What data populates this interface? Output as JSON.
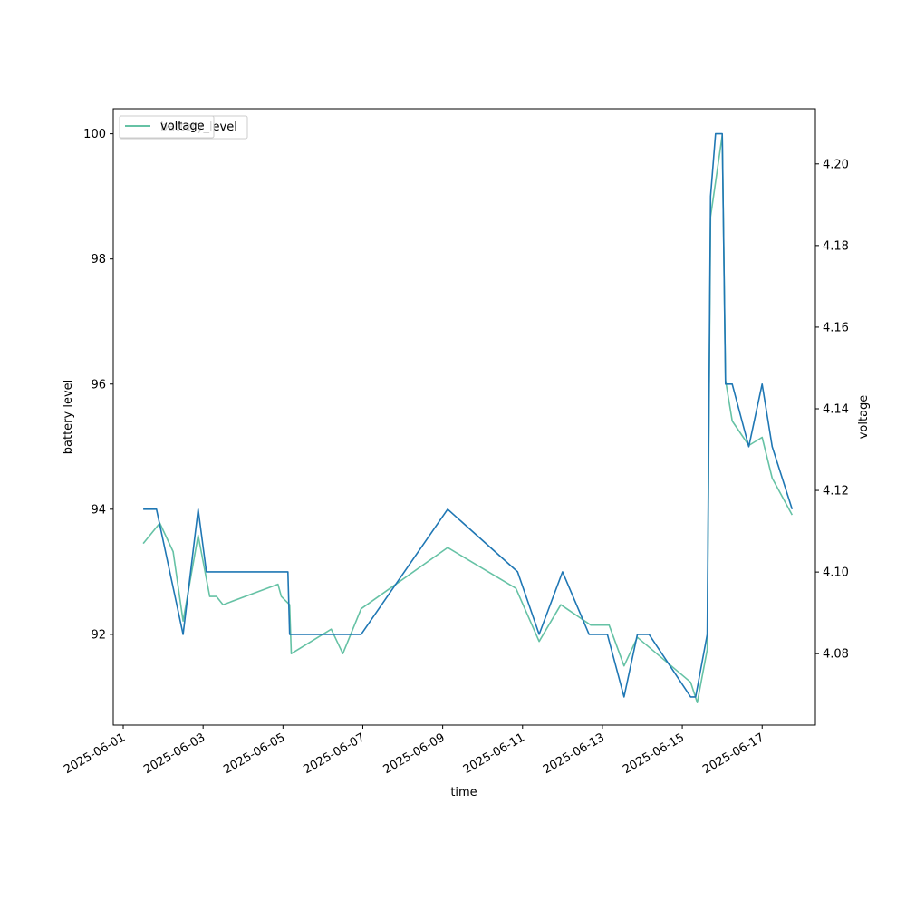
{
  "chart_data": {
    "type": "line",
    "xlabel": "time",
    "ylabel": "battery level",
    "y2label": "voltage",
    "xlim": [
      "2025-05-31T18:00",
      "2025-06-18T08:00"
    ],
    "ylim": [
      90.55,
      100.4
    ],
    "y2lim": [
      4.0625,
      4.2135
    ],
    "x_ticks": [
      "2025-06-01",
      "2025-06-03",
      "2025-06-05",
      "2025-06-07",
      "2025-06-09",
      "2025-06-11",
      "2025-06-13",
      "2025-06-15",
      "2025-06-17"
    ],
    "y_ticks": [
      92,
      94,
      96,
      98,
      100
    ],
    "y2_ticks": [
      4.08,
      4.1,
      4.12,
      4.14,
      4.16,
      4.18,
      4.2
    ],
    "legend": {
      "placement": "upper-left",
      "entries": [
        "battery_level",
        "voltage"
      ]
    },
    "grid": false,
    "series": [
      {
        "name": "battery_level",
        "axis": "left",
        "color": "#1f77b4",
        "points": [
          [
            "2025-06-01T12:00",
            94
          ],
          [
            "2025-06-01T20:00",
            94
          ],
          [
            "2025-06-02T12:00",
            92
          ],
          [
            "2025-06-02T21:00",
            94
          ],
          [
            "2025-06-03T02:00",
            93
          ],
          [
            "2025-06-05T03:00",
            93
          ],
          [
            "2025-06-05T04:00",
            92
          ],
          [
            "2025-06-06T23:00",
            92
          ],
          [
            "2025-06-09T03:00",
            94
          ],
          [
            "2025-06-10T21:00",
            93
          ],
          [
            "2025-06-11T10:00",
            92
          ],
          [
            "2025-06-12T00:00",
            93
          ],
          [
            "2025-06-12T16:00",
            92
          ],
          [
            "2025-06-13T03:00",
            92
          ],
          [
            "2025-06-13T13:00",
            91
          ],
          [
            "2025-06-13T21:00",
            92
          ],
          [
            "2025-06-14T04:00",
            92
          ],
          [
            "2025-06-15T05:00",
            91
          ],
          [
            "2025-06-15T08:00",
            91
          ],
          [
            "2025-06-15T15:00",
            92
          ],
          [
            "2025-06-15T17:00",
            99
          ],
          [
            "2025-06-15T20:00",
            100
          ],
          [
            "2025-06-16T00:00",
            100
          ],
          [
            "2025-06-16T02:00",
            96
          ],
          [
            "2025-06-16T06:00",
            96
          ],
          [
            "2025-06-16T16:00",
            95
          ],
          [
            "2025-06-17T00:00",
            96
          ],
          [
            "2025-06-17T06:00",
            95
          ],
          [
            "2025-06-17T18:00",
            94
          ]
        ]
      },
      {
        "name": "voltage",
        "axis": "right",
        "color": "#66c2a5",
        "points": [
          [
            "2025-06-01T12:00",
            4.107
          ],
          [
            "2025-06-01T22:00",
            4.112
          ],
          [
            "2025-06-02T06:00",
            4.105
          ],
          [
            "2025-06-02T12:00",
            4.088
          ],
          [
            "2025-06-02T21:00",
            4.109
          ],
          [
            "2025-06-03T04:00",
            4.094
          ],
          [
            "2025-06-03T08:00",
            4.094
          ],
          [
            "2025-06-03T12:00",
            4.092
          ],
          [
            "2025-06-04T21:00",
            4.097
          ],
          [
            "2025-06-04T23:00",
            4.094
          ],
          [
            "2025-06-05T04:00",
            4.092
          ],
          [
            "2025-06-05T05:00",
            4.08
          ],
          [
            "2025-06-06T05:00",
            4.086
          ],
          [
            "2025-06-06T12:00",
            4.08
          ],
          [
            "2025-06-06T23:00",
            4.091
          ],
          [
            "2025-06-09T03:00",
            4.106
          ],
          [
            "2025-06-10T20:00",
            4.096
          ],
          [
            "2025-06-11T10:00",
            4.083
          ],
          [
            "2025-06-11T23:00",
            4.092
          ],
          [
            "2025-06-12T17:00",
            4.087
          ],
          [
            "2025-06-13T04:00",
            4.087
          ],
          [
            "2025-06-13T13:00",
            4.077
          ],
          [
            "2025-06-13T21:00",
            4.084
          ],
          [
            "2025-06-15T05:00",
            4.073
          ],
          [
            "2025-06-15T09:00",
            4.068
          ],
          [
            "2025-06-15T15:00",
            4.081
          ],
          [
            "2025-06-15T17:00",
            4.187
          ],
          [
            "2025-06-16T00:00",
            4.207
          ],
          [
            "2025-06-16T02:00",
            4.147
          ],
          [
            "2025-06-16T06:00",
            4.137
          ],
          [
            "2025-06-16T16:00",
            4.131
          ],
          [
            "2025-06-17T00:00",
            4.133
          ],
          [
            "2025-06-17T06:00",
            4.123
          ],
          [
            "2025-06-17T18:00",
            4.114
          ]
        ]
      }
    ]
  }
}
